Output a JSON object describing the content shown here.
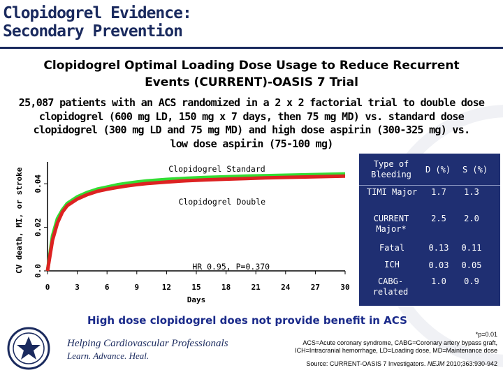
{
  "slide": {
    "title_line1": "Clopidogrel Evidence:",
    "title_line2": "Secondary Prevention",
    "subtitle_line1": "Clopidogrel Optimal Loading Dose Usage to Reduce Recurrent",
    "subtitle_line2": "Events (CURRENT)-OASIS 7 Trial",
    "desc_line1": "25,087 patients with an ACS randomized in a 2 x 2 factorial trial to double dose",
    "desc_line2": "clopidogrel (600 mg LD, 150 mg x 7 days, then 75 mg MD) vs. standard dose",
    "desc_line3": "clopidogrel (300 mg LD and 75 mg MD) and high dose aspirin (300-325 mg) vs.",
    "desc_line4": "low dose aspirin (75-100 mg)",
    "conclusion": "High dose clopidogrel does not provide benefit in ACS",
    "footnote_p": "*p=0.01",
    "footnote_abbrev1": "ACS=Acute coronary syndrome, CABG=Coronary artery bypass graft,",
    "footnote_abbrev2": "ICH=Intracranial hemorrhage, LD=Loading dose, MD=Maintenance dose",
    "source_prefix": "Source: CURRENT-OASIS 7 Investigators.",
    "source_journal": "NEJM",
    "source_suffix": "2010;363:930-942",
    "tagline1": "Helping Cardiovascular Professionals",
    "tagline2": "Learn. Advance. Heal."
  },
  "colors": {
    "title": "#1a2a5e",
    "standard": "#33dd33",
    "double": "#dd2222",
    "table_bg": "#1f2f72",
    "conclusion": "#1a2a8a"
  },
  "chart_data": {
    "type": "line",
    "title": "",
    "xlabel": "Days",
    "ylabel": "CV death, MI, or stroke",
    "xlim": [
      0,
      30
    ],
    "ylim": [
      0,
      0.05
    ],
    "x_ticks": [
      "0",
      "3",
      "6",
      "9",
      "12",
      "15",
      "18",
      "21",
      "24",
      "27",
      "30"
    ],
    "y_ticks": [
      "0.0",
      "0.02",
      "0.04"
    ],
    "annotation": "HR 0.95, P=0.370",
    "series": [
      {
        "name": "Clopidogrel Standard",
        "x": [
          0,
          0.5,
          1,
          1.5,
          2,
          3,
          4,
          5,
          6,
          7,
          8,
          9,
          10,
          12,
          14,
          16,
          18,
          20,
          22,
          24,
          26,
          28,
          30
        ],
        "y": [
          0,
          0.016,
          0.024,
          0.028,
          0.031,
          0.034,
          0.036,
          0.0375,
          0.0385,
          0.0395,
          0.0402,
          0.0408,
          0.0413,
          0.042,
          0.0425,
          0.0429,
          0.0432,
          0.0435,
          0.0437,
          0.0439,
          0.0441,
          0.0443,
          0.0445
        ]
      },
      {
        "name": "Clopidogrel Double",
        "x": [
          0,
          0.5,
          1,
          1.5,
          2,
          3,
          4,
          5,
          6,
          7,
          8,
          9,
          10,
          12,
          14,
          16,
          18,
          20,
          22,
          24,
          26,
          28,
          30
        ],
        "y": [
          0,
          0.014,
          0.022,
          0.027,
          0.03,
          0.033,
          0.035,
          0.0365,
          0.0375,
          0.0383,
          0.039,
          0.0396,
          0.0401,
          0.0408,
          0.0414,
          0.0418,
          0.0421,
          0.0424,
          0.0427,
          0.0429,
          0.0431,
          0.0433,
          0.0435
        ]
      }
    ]
  },
  "bleeding_table": {
    "headers": [
      "Type of Bleeding",
      "D (%)",
      "S (%)"
    ],
    "rows": [
      {
        "type": "TIMI Major",
        "d": "1.7",
        "s": "1.3"
      },
      {
        "type": "CURRENT Major*",
        "d": "2.5",
        "s": "2.0"
      },
      {
        "type": "Fatal",
        "d": "0.13",
        "s": "0.11"
      },
      {
        "type": "ICH",
        "d": "0.03",
        "s": "0.05"
      },
      {
        "type": "CABG-related",
        "d": "1.0",
        "s": "0.9"
      }
    ]
  }
}
